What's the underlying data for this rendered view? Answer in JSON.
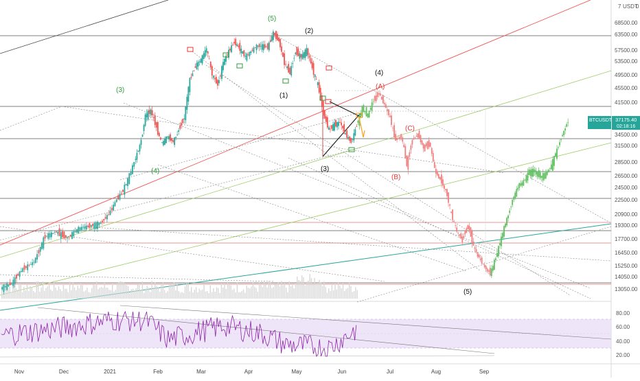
{
  "chart_data": {
    "type": "line",
    "symbol": "BTCUSDT",
    "currency": "USDT",
    "last_price": "37175.40",
    "countdown": "02:18:16",
    "price_axis_ticks": [
      "68500.00",
      "63500.00",
      "57500.00",
      "53500.00",
      "49500.00",
      "45500.00",
      "41500.00",
      "34500.00",
      "31500.00",
      "28500.00",
      "26500.00",
      "24500.00",
      "22500.00",
      "20900.00",
      "19300.00",
      "17700.00",
      "16450.00",
      "15250.00",
      "14050.00",
      "13050.00"
    ],
    "rsi_axis_ticks": [
      "80.00",
      "60.00",
      "40.00",
      "20.00"
    ],
    "date_ticks": [
      "Nov",
      "Dec",
      "2021",
      "Feb",
      "Mar",
      "Apr",
      "May",
      "Jun",
      "Jul",
      "Aug",
      "Sep"
    ],
    "series": [
      {
        "values": [
          [
            0,
            13100
          ],
          [
            4,
            13500
          ],
          [
            8,
            14900
          ],
          [
            12,
            15600
          ],
          [
            16,
            18000
          ],
          [
            20,
            18500
          ],
          [
            24,
            17800
          ],
          [
            28,
            18900
          ],
          [
            32,
            19200
          ],
          [
            36,
            19600
          ],
          [
            40,
            21500
          ],
          [
            44,
            24000
          ],
          [
            48,
            28500
          ],
          [
            50,
            31500
          ],
          [
            52,
            38500
          ],
          [
            54,
            39500
          ],
          [
            56,
            36000
          ],
          [
            58,
            32000
          ],
          [
            60,
            34000
          ],
          [
            62,
            32500
          ],
          [
            64,
            35500
          ],
          [
            66,
            38000
          ],
          [
            68,
            48000
          ],
          [
            70,
            52000
          ],
          [
            72,
            54000
          ],
          [
            74,
            58000
          ],
          [
            76,
            49500
          ],
          [
            78,
            46500
          ],
          [
            80,
            53000
          ],
          [
            82,
            57000
          ],
          [
            84,
            60500
          ],
          [
            86,
            58000
          ],
          [
            88,
            55000
          ],
          [
            90,
            57000
          ],
          [
            92,
            59000
          ],
          [
            94,
            59000
          ],
          [
            96,
            58500
          ],
          [
            98,
            64000
          ],
          [
            100,
            61000
          ],
          [
            102,
            53000
          ],
          [
            104,
            50000
          ],
          [
            106,
            57000
          ],
          [
            108,
            55000
          ],
          [
            110,
            57500
          ],
          [
            112,
            51500
          ],
          [
            114,
            46500
          ],
          [
            116,
            39000
          ],
          [
            118,
            35500
          ],
          [
            120,
            36500
          ],
          [
            122,
            37000
          ],
          [
            124,
            34500
          ],
          [
            126,
            32500
          ],
          [
            128,
            36500
          ]
        ]
      },
      {
        "values": [
          [
            128,
            36500
          ],
          [
            130,
            40000
          ],
          [
            132,
            38500
          ],
          [
            134,
            42000
          ],
          [
            136,
            44000
          ],
          [
            138,
            41000
          ],
          [
            140,
            38000
          ],
          [
            142,
            33000
          ],
          [
            144,
            34000
          ],
          [
            146,
            28000
          ],
          [
            148,
            33000
          ],
          [
            150,
            34500
          ],
          [
            152,
            31000
          ],
          [
            154,
            32500
          ],
          [
            156,
            27500
          ],
          [
            158,
            26000
          ],
          [
            160,
            24000
          ],
          [
            162,
            20900
          ],
          [
            164,
            18500
          ],
          [
            166,
            17700
          ],
          [
            168,
            19300
          ],
          [
            170,
            17000
          ],
          [
            172,
            16000
          ],
          [
            174,
            15100
          ],
          [
            176,
            14400
          ],
          [
            178,
            16000
          ],
          [
            180,
            17800
          ],
          [
            182,
            20200
          ],
          [
            184,
            22500
          ],
          [
            186,
            24500
          ],
          [
            188,
            25500
          ],
          [
            190,
            27000
          ],
          [
            192,
            27200
          ],
          [
            194,
            26300
          ],
          [
            196,
            26700
          ],
          [
            198,
            28000
          ],
          [
            200,
            30500
          ],
          [
            202,
            34500
          ],
          [
            204,
            37175
          ]
        ]
      },
      {
        "values": [
          [
            0,
            48
          ],
          [
            20,
            58
          ],
          [
            40,
            70
          ],
          [
            52,
            70
          ],
          [
            60,
            42
          ],
          [
            80,
            62
          ],
          [
            94,
            50
          ],
          [
            102,
            35
          ],
          [
            118,
            30
          ],
          [
            128,
            58
          ],
          [
            204,
            60
          ]
        ]
      }
    ],
    "wave_labels": [
      {
        "text": "(5)",
        "color": "green"
      },
      {
        "text": "(3)",
        "color": "green"
      },
      {
        "text": "(4)",
        "color": "green"
      },
      {
        "text": "(2)",
        "color": "black"
      },
      {
        "text": "(1)",
        "color": "black"
      },
      {
        "text": "(4)",
        "color": "black"
      },
      {
        "text": "(3)",
        "color": "black"
      },
      {
        "text": "(5)",
        "color": "black"
      },
      {
        "text": "(A)",
        "color": "red"
      },
      {
        "text": "(B)",
        "color": "red"
      },
      {
        "text": "(C)",
        "color": "red"
      }
    ],
    "rsi_band": [
      30,
      70
    ],
    "colors": {
      "up": "#26a69a",
      "down": "#ef5350",
      "projection_up": "#5fbf5f",
      "projection_down": "#f08080",
      "rsi": "#8e24aa",
      "price_tag": "#26a69a"
    }
  }
}
